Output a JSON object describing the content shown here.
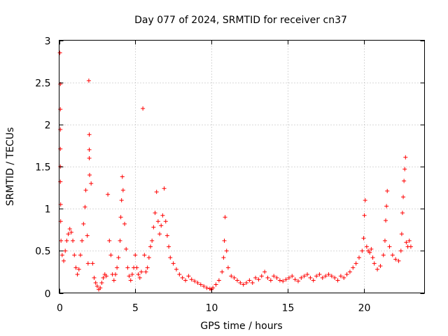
{
  "chart_data": {
    "type": "scatter",
    "title": "Day 077 of 2024, SRMTID for receiver cn37",
    "xlabel": "GPS time / hours",
    "ylabel": "SRMTID / TECUs",
    "xlim": [
      0,
      24
    ],
    "ylim": [
      0,
      3
    ],
    "xticks": [
      0,
      5,
      10,
      15,
      20
    ],
    "xtick_labels": [
      "0",
      "5",
      "10",
      "15",
      "20"
    ],
    "yticks": [
      0,
      0.5,
      1,
      1.5,
      2,
      2.5,
      3
    ],
    "ytick_labels": [
      "0",
      "0.5",
      "1",
      "1.5",
      "2",
      "2.5",
      "3"
    ],
    "grid": true,
    "marker": "+",
    "color": "#ff0000",
    "series": [
      {
        "name": "SRMTID",
        "points": [
          [
            0.05,
            2.85
          ],
          [
            0.08,
            2.48
          ],
          [
            0.08,
            2.18
          ],
          [
            0.08,
            1.94
          ],
          [
            0.08,
            1.71
          ],
          [
            0.08,
            1.5
          ],
          [
            0.08,
            1.32
          ],
          [
            0.1,
            1.05
          ],
          [
            0.1,
            0.85
          ],
          [
            0.12,
            0.62
          ],
          [
            0.2,
            0.45
          ],
          [
            0.3,
            0.38
          ],
          [
            0.4,
            0.5
          ],
          [
            0.5,
            0.62
          ],
          [
            0.6,
            0.7
          ],
          [
            0.7,
            0.76
          ],
          [
            0.8,
            0.72
          ],
          [
            0.9,
            0.62
          ],
          [
            1.0,
            0.45
          ],
          [
            1.1,
            0.3
          ],
          [
            1.2,
            0.22
          ],
          [
            1.3,
            0.28
          ],
          [
            1.4,
            0.45
          ],
          [
            1.5,
            0.62
          ],
          [
            1.6,
            0.82
          ],
          [
            1.7,
            1.02
          ],
          [
            1.75,
            1.22
          ],
          [
            1.85,
            0.68
          ],
          [
            1.9,
            0.35
          ],
          [
            1.95,
            2.52
          ],
          [
            1.98,
            1.88
          ],
          [
            1.98,
            1.7
          ],
          [
            1.98,
            1.6
          ],
          [
            2.0,
            1.4
          ],
          [
            2.1,
            1.3
          ],
          [
            2.2,
            0.35
          ],
          [
            2.3,
            0.18
          ],
          [
            2.4,
            0.12
          ],
          [
            2.5,
            0.08
          ],
          [
            2.6,
            0.04
          ],
          [
            2.7,
            0.06
          ],
          [
            2.8,
            0.12
          ],
          [
            2.9,
            0.18
          ],
          [
            3.0,
            0.22
          ],
          [
            3.1,
            0.2
          ],
          [
            3.2,
            1.17
          ],
          [
            3.3,
            0.62
          ],
          [
            3.4,
            0.45
          ],
          [
            3.5,
            0.22
          ],
          [
            3.6,
            0.15
          ],
          [
            3.7,
            0.22
          ],
          [
            3.8,
            0.3
          ],
          [
            3.9,
            0.42
          ],
          [
            4.0,
            0.62
          ],
          [
            4.05,
            0.9
          ],
          [
            4.1,
            1.1
          ],
          [
            4.15,
            1.38
          ],
          [
            4.2,
            1.22
          ],
          [
            4.3,
            0.82
          ],
          [
            4.4,
            0.52
          ],
          [
            4.5,
            0.3
          ],
          [
            4.6,
            0.2
          ],
          [
            4.7,
            0.15
          ],
          [
            4.8,
            0.22
          ],
          [
            4.9,
            0.3
          ],
          [
            5.0,
            0.45
          ],
          [
            5.1,
            0.3
          ],
          [
            5.2,
            0.22
          ],
          [
            5.3,
            0.18
          ],
          [
            5.4,
            0.25
          ],
          [
            5.5,
            2.19
          ],
          [
            5.6,
            0.45
          ],
          [
            5.7,
            0.25
          ],
          [
            5.8,
            0.3
          ],
          [
            5.9,
            0.42
          ],
          [
            6.0,
            0.55
          ],
          [
            6.1,
            0.62
          ],
          [
            6.2,
            0.78
          ],
          [
            6.3,
            0.95
          ],
          [
            6.4,
            1.2
          ],
          [
            6.5,
            0.85
          ],
          [
            6.6,
            0.7
          ],
          [
            6.7,
            0.8
          ],
          [
            6.8,
            0.92
          ],
          [
            6.9,
            1.24
          ],
          [
            7.0,
            0.85
          ],
          [
            7.1,
            0.68
          ],
          [
            7.2,
            0.55
          ],
          [
            7.3,
            0.42
          ],
          [
            7.5,
            0.35
          ],
          [
            7.7,
            0.28
          ],
          [
            7.9,
            0.22
          ],
          [
            8.1,
            0.18
          ],
          [
            8.3,
            0.15
          ],
          [
            8.5,
            0.2
          ],
          [
            8.7,
            0.16
          ],
          [
            8.9,
            0.14
          ],
          [
            9.1,
            0.12
          ],
          [
            9.3,
            0.1
          ],
          [
            9.5,
            0.08
          ],
          [
            9.7,
            0.06
          ],
          [
            9.9,
            0.05
          ],
          [
            10.0,
            0.04
          ],
          [
            10.1,
            0.06
          ],
          [
            10.3,
            0.1
          ],
          [
            10.5,
            0.15
          ],
          [
            10.7,
            0.25
          ],
          [
            10.8,
            0.42
          ],
          [
            10.85,
            0.62
          ],
          [
            10.9,
            0.9
          ],
          [
            11.0,
            0.5
          ],
          [
            11.1,
            0.3
          ],
          [
            11.3,
            0.2
          ],
          [
            11.5,
            0.18
          ],
          [
            11.7,
            0.15
          ],
          [
            11.9,
            0.12
          ],
          [
            12.1,
            0.1
          ],
          [
            12.3,
            0.12
          ],
          [
            12.5,
            0.15
          ],
          [
            12.7,
            0.12
          ],
          [
            12.9,
            0.18
          ],
          [
            13.1,
            0.16
          ],
          [
            13.3,
            0.2
          ],
          [
            13.5,
            0.25
          ],
          [
            13.7,
            0.18
          ],
          [
            13.9,
            0.15
          ],
          [
            14.1,
            0.2
          ],
          [
            14.3,
            0.18
          ],
          [
            14.5,
            0.15
          ],
          [
            14.7,
            0.14
          ],
          [
            14.9,
            0.16
          ],
          [
            15.1,
            0.18
          ],
          [
            15.3,
            0.2
          ],
          [
            15.5,
            0.16
          ],
          [
            15.7,
            0.14
          ],
          [
            15.9,
            0.18
          ],
          [
            16.1,
            0.2
          ],
          [
            16.3,
            0.22
          ],
          [
            16.5,
            0.18
          ],
          [
            16.7,
            0.15
          ],
          [
            16.9,
            0.2
          ],
          [
            17.1,
            0.22
          ],
          [
            17.3,
            0.18
          ],
          [
            17.5,
            0.2
          ],
          [
            17.7,
            0.22
          ],
          [
            17.9,
            0.2
          ],
          [
            18.1,
            0.18
          ],
          [
            18.3,
            0.15
          ],
          [
            18.5,
            0.2
          ],
          [
            18.7,
            0.18
          ],
          [
            18.9,
            0.22
          ],
          [
            19.1,
            0.25
          ],
          [
            19.3,
            0.3
          ],
          [
            19.5,
            0.35
          ],
          [
            19.7,
            0.42
          ],
          [
            19.9,
            0.5
          ],
          [
            20.0,
            0.65
          ],
          [
            20.05,
            0.92
          ],
          [
            20.1,
            1.1
          ],
          [
            20.2,
            0.55
          ],
          [
            20.3,
            0.5
          ],
          [
            20.4,
            0.48
          ],
          [
            20.5,
            0.52
          ],
          [
            20.6,
            0.42
          ],
          [
            20.7,
            0.35
          ],
          [
            20.9,
            0.28
          ],
          [
            21.1,
            0.32
          ],
          [
            21.3,
            0.45
          ],
          [
            21.4,
            0.62
          ],
          [
            21.45,
            0.86
          ],
          [
            21.5,
            1.03
          ],
          [
            21.55,
            1.21
          ],
          [
            21.7,
            0.55
          ],
          [
            21.9,
            0.45
          ],
          [
            22.1,
            0.4
          ],
          [
            22.3,
            0.38
          ],
          [
            22.45,
            0.5
          ],
          [
            22.5,
            0.7
          ],
          [
            22.55,
            0.95
          ],
          [
            22.6,
            1.14
          ],
          [
            22.65,
            1.33
          ],
          [
            22.7,
            1.47
          ],
          [
            22.75,
            1.61
          ],
          [
            22.8,
            0.6
          ],
          [
            22.9,
            0.55
          ],
          [
            23.0,
            0.62
          ],
          [
            23.1,
            0.55
          ]
        ]
      }
    ]
  }
}
